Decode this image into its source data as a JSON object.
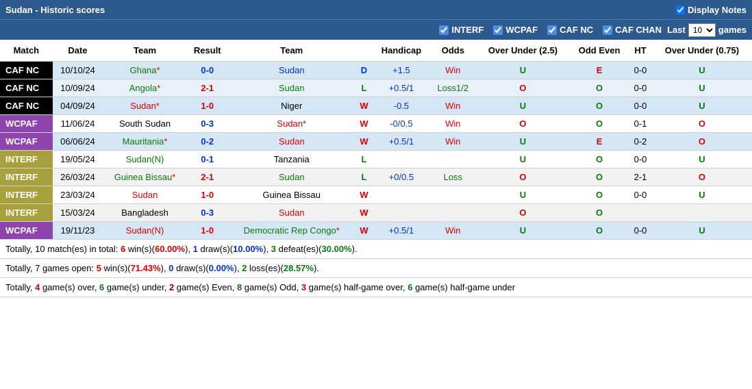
{
  "header": {
    "title": "Sudan - Historic scores",
    "displayNotes": "Display Notes"
  },
  "filters": {
    "items": [
      {
        "label": "INTERF",
        "checked": true
      },
      {
        "label": "WCPAF",
        "checked": true
      },
      {
        "label": "CAF NC",
        "checked": true
      },
      {
        "label": "CAF CHAN",
        "checked": true
      }
    ],
    "lastPrefix": "Last",
    "lastCount": "10",
    "lastSuffix": "games"
  },
  "columns": [
    "Match",
    "Date",
    "Team",
    "Result",
    "Team",
    "",
    "Handicap",
    "Odds",
    "Over Under (2.5)",
    "Odd Even",
    "HT",
    "Over Under (0.75)"
  ],
  "rows": [
    {
      "match": "CAF NC",
      "mclass": "match-caf-nc",
      "rclass": "row-blue-light",
      "date": "10/10/24",
      "t1": "Ghana",
      "t1c": "team-green",
      "t1star": true,
      "result": "0-0",
      "rc": "result-blue",
      "t2": "Sudan",
      "t2c": "team-blue",
      "t2star": false,
      "wl": "D",
      "wlc": "wl-d",
      "handicap": "+1.5",
      "odds": "Win",
      "oddsc": "odds-win",
      "ou25": "U",
      "oe": "E",
      "oec": "oe-e",
      "ht": "0-0",
      "ou075": "U"
    },
    {
      "match": "CAF NC",
      "mclass": "match-caf-nc",
      "rclass": "row-blue-lighter",
      "date": "10/09/24",
      "t1": "Angola",
      "t1c": "team-green",
      "t1star": true,
      "result": "2-1",
      "rc": "result-red",
      "t2": "Sudan",
      "t2c": "team-green",
      "t2star": false,
      "wl": "L",
      "wlc": "wl-l",
      "handicap": "+0.5/1",
      "odds": "Loss1/2",
      "oddsc": "odds-loss",
      "ou25": "O",
      "oe": "O",
      "oec": "oe-o",
      "ht": "0-0",
      "ou075": "U"
    },
    {
      "match": "CAF NC",
      "mclass": "match-caf-nc",
      "rclass": "row-blue-light",
      "date": "04/09/24",
      "t1": "Sudan",
      "t1c": "team-red",
      "t1star": true,
      "result": "1-0",
      "rc": "result-red",
      "t2": "Niger",
      "t2c": "",
      "t2star": false,
      "wl": "W",
      "wlc": "wl-w",
      "handicap": "-0.5",
      "odds": "Win",
      "oddsc": "odds-win",
      "ou25": "U",
      "oe": "O",
      "oec": "oe-o",
      "ht": "0-0",
      "ou075": "U"
    },
    {
      "match": "WCPAF",
      "mclass": "match-wcpaf",
      "rclass": "row-white",
      "date": "11/06/24",
      "t1": "South Sudan",
      "t1c": "",
      "t1star": false,
      "result": "0-3",
      "rc": "result-blue",
      "t2": "Sudan",
      "t2c": "team-red",
      "t2star": true,
      "wl": "W",
      "wlc": "wl-w",
      "handicap": "-0/0.5",
      "odds": "Win",
      "oddsc": "odds-win",
      "ou25": "O",
      "oe": "O",
      "oec": "oe-o",
      "ht": "0-1",
      "ou075": "O"
    },
    {
      "match": "WCPAF",
      "mclass": "match-wcpaf",
      "rclass": "row-blue-light",
      "date": "06/06/24",
      "t1": "Mauritania",
      "t1c": "team-green",
      "t1star": true,
      "result": "0-2",
      "rc": "result-blue",
      "t2": "Sudan",
      "t2c": "team-red",
      "t2star": false,
      "wl": "W",
      "wlc": "wl-w",
      "handicap": "+0.5/1",
      "odds": "Win",
      "oddsc": "odds-win",
      "ou25": "U",
      "oe": "E",
      "oec": "oe-e",
      "ht": "0-2",
      "ou075": "O"
    },
    {
      "match": "INTERF",
      "mclass": "match-interf",
      "rclass": "row-white",
      "date": "19/05/24",
      "t1": "Sudan(N)",
      "t1c": "team-green",
      "t1star": false,
      "result": "0-1",
      "rc": "result-blue",
      "t2": "Tanzania",
      "t2c": "",
      "t2star": false,
      "wl": "L",
      "wlc": "wl-l",
      "handicap": "",
      "odds": "",
      "oddsc": "",
      "ou25": "U",
      "oe": "O",
      "oec": "oe-o",
      "ht": "0-0",
      "ou075": "U"
    },
    {
      "match": "INTERF",
      "mclass": "match-interf",
      "rclass": "row-gray",
      "date": "26/03/24",
      "t1": "Guinea Bissau",
      "t1c": "team-green",
      "t1star": true,
      "result": "2-1",
      "rc": "result-red",
      "t2": "Sudan",
      "t2c": "team-green",
      "t2star": false,
      "wl": "L",
      "wlc": "wl-l",
      "handicap": "+0/0.5",
      "odds": "Loss",
      "oddsc": "odds-loss",
      "ou25": "O",
      "oe": "O",
      "oec": "oe-o",
      "ht": "2-1",
      "ou075": "O"
    },
    {
      "match": "INTERF",
      "mclass": "match-interf",
      "rclass": "row-white",
      "date": "23/03/24",
      "t1": "Sudan",
      "t1c": "team-red",
      "t1star": false,
      "result": "1-0",
      "rc": "result-red",
      "t2": "Guinea Bissau",
      "t2c": "",
      "t2star": false,
      "wl": "W",
      "wlc": "wl-w",
      "handicap": "",
      "odds": "",
      "oddsc": "",
      "ou25": "U",
      "oe": "O",
      "oec": "oe-o",
      "ht": "0-0",
      "ou075": "U"
    },
    {
      "match": "INTERF",
      "mclass": "match-interf",
      "rclass": "row-gray",
      "date": "15/03/24",
      "t1": "Bangladesh",
      "t1c": "",
      "t1star": false,
      "result": "0-3",
      "rc": "result-blue",
      "t2": "Sudan",
      "t2c": "team-red",
      "t2star": false,
      "wl": "W",
      "wlc": "wl-w",
      "handicap": "",
      "odds": "",
      "oddsc": "",
      "ou25": "O",
      "oe": "O",
      "oec": "oe-o",
      "ht": "",
      "ou075": ""
    },
    {
      "match": "WCPAF",
      "mclass": "match-wcpaf",
      "rclass": "row-blue-light",
      "date": "19/11/23",
      "t1": "Sudan(N)",
      "t1c": "team-red",
      "t1star": false,
      "result": "1-0",
      "rc": "result-red",
      "t2": "Democratic Rep Congo",
      "t2c": "team-green",
      "t2star": true,
      "wl": "W",
      "wlc": "wl-w",
      "handicap": "+0.5/1",
      "odds": "Win",
      "oddsc": "odds-win",
      "ou25": "U",
      "oe": "O",
      "oec": "oe-o",
      "ht": "0-0",
      "ou075": "U"
    }
  ],
  "summary": {
    "line1": {
      "a": "Totally, ",
      "b": "10",
      "c": " match(es) in total: ",
      "d": "6",
      "e": " win(s)(",
      "f": "60.00%",
      "g": "), ",
      "h": "1",
      "i": " draw(s)(",
      "j": "10.00%",
      "k": "), ",
      "l": "3",
      "m": " defeat(es)(",
      "n": "30.00%",
      "o": ")."
    },
    "line2": {
      "a": "Totally, ",
      "b": "7",
      "c": " games open: ",
      "d": "5",
      "e": " win(s)(",
      "f": "71.43%",
      "g": "), ",
      "h": "0",
      "i": " draw(s)(",
      "j": "0.00%",
      "k": "), ",
      "l": "2",
      "m": " loss(es)(",
      "n": "28.57%",
      "o": ")."
    },
    "line3": {
      "a": "Totally, ",
      "b": "4",
      "c": " game(s) over, ",
      "d": "6",
      "e": " game(s) under, ",
      "f": "2",
      "g": " game(s) Even, ",
      "h": "8",
      "i": " game(s) Odd, ",
      "j": "3",
      "k": " game(s) half-game over, ",
      "l": "6",
      "m": " game(s) half-game under"
    }
  }
}
